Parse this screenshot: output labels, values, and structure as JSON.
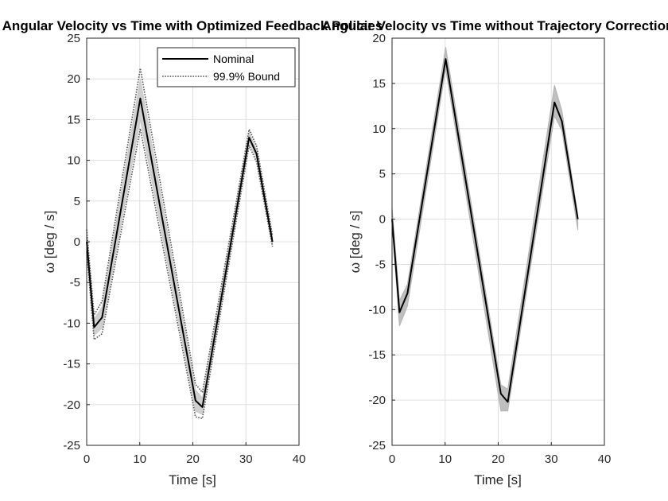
{
  "chart_data": [
    {
      "type": "line",
      "title": "Angular Velocity vs Time with Optimized Feedback Policies",
      "xlabel": "Time [s]",
      "ylabel": "ω [deg / s]",
      "xlim": [
        0,
        40
      ],
      "ylim": [
        -25,
        25
      ],
      "xticks": [
        0,
        10,
        20,
        30,
        40
      ],
      "yticks": [
        -25,
        -20,
        -15,
        -10,
        -5,
        0,
        5,
        10,
        15,
        20,
        25
      ],
      "grid": true,
      "legend_position": "top-right",
      "colors": {
        "nominal": "#000000",
        "bound": "#555555",
        "band": "#c8c8c8"
      },
      "series": [
        {
          "name": "Nominal",
          "style": "solid",
          "x": [
            0,
            1.4,
            2.9,
            10.1,
            20.5,
            21.8,
            30.6,
            32.0,
            35.0
          ],
          "y": [
            0,
            -10.5,
            -9.3,
            17.6,
            -19.5,
            -20.3,
            12.8,
            10.8,
            0
          ]
        },
        {
          "name": "99.9% Bound",
          "style": "dotted",
          "x": [
            0,
            1.4,
            2.9,
            10.1,
            20.5,
            21.8,
            30.6,
            32.0,
            35.0
          ],
          "y": [
            1.5,
            -9.0,
            -7.3,
            21.3,
            -17.5,
            -18.5,
            13.8,
            11.8,
            0.8
          ]
        },
        {
          "name": "",
          "style": "dotted",
          "x": [
            0,
            1.4,
            2.9,
            10.1,
            20.5,
            21.8,
            30.6,
            32.0,
            35.0
          ],
          "y": [
            -1.2,
            -12.0,
            -11.3,
            13.9,
            -21.5,
            -21.7,
            11.8,
            9.8,
            -0.6
          ]
        }
      ],
      "band": {
        "x": [
          0,
          1.4,
          2.9,
          10.1,
          20.5,
          21.8,
          30.6,
          32.0,
          35.0
        ],
        "upper": [
          1.0,
          -9.5,
          -8.0,
          20.0,
          -18.2,
          -19.2,
          13.4,
          11.4,
          0.5
        ],
        "lower": [
          -0.8,
          -11.5,
          -10.6,
          15.0,
          -20.8,
          -21.2,
          12.2,
          10.2,
          -0.4
        ]
      }
    },
    {
      "type": "line",
      "title": "Angular Velocity vs Time without Trajectory Correction",
      "xlabel": "Time [s]",
      "ylabel": "ω [deg / s]",
      "xlim": [
        0,
        40
      ],
      "ylim": [
        -25,
        20
      ],
      "xticks": [
        0,
        10,
        20,
        30,
        40
      ],
      "yticks": [
        -25,
        -20,
        -15,
        -10,
        -5,
        0,
        5,
        10,
        15,
        20
      ],
      "grid": true,
      "colors": {
        "nominal": "#000000",
        "band": "#b4b4b4"
      },
      "series": [
        {
          "name": "",
          "style": "solid",
          "x": [
            0,
            1.4,
            2.9,
            10.1,
            20.5,
            21.8,
            30.6,
            32.0,
            35.0
          ],
          "y": [
            0,
            -10.3,
            -8.2,
            17.7,
            -19.3,
            -20.2,
            12.9,
            10.8,
            0
          ]
        }
      ],
      "band": {
        "x": [
          0,
          1.4,
          2.9,
          10.1,
          20.5,
          21.8,
          30.6,
          32.0,
          35.0
        ],
        "upper": [
          1.3,
          -9.0,
          -7.2,
          19.0,
          -18.3,
          -18.8,
          14.8,
          12.0,
          0.4
        ],
        "lower": [
          -0.6,
          -11.8,
          -9.6,
          16.6,
          -21.2,
          -21.2,
          11.4,
          9.8,
          -1.2
        ]
      }
    }
  ]
}
